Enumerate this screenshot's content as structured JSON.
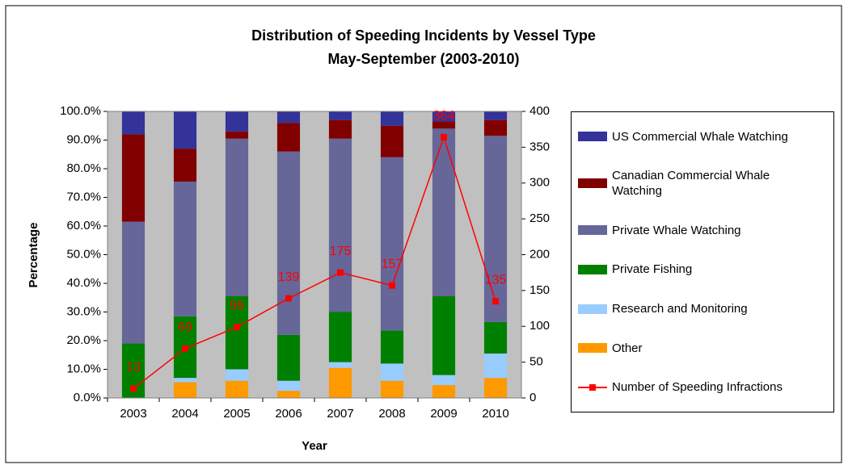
{
  "chart_data": {
    "type": "bar",
    "stacked": true,
    "title": "Distribution of Speeding Incidents by Vessel Type",
    "subtitle": "May-September (2003-2010)",
    "x_label": "Year",
    "y_label": "Percentage",
    "categories": [
      "2003",
      "2004",
      "2005",
      "2006",
      "2007",
      "2008",
      "2009",
      "2010"
    ],
    "ylim": [
      0,
      100
    ],
    "yticks": [
      {
        "value": 0,
        "label": "0.0%"
      },
      {
        "value": 10,
        "label": "10.0%"
      },
      {
        "value": 20,
        "label": "20.0%"
      },
      {
        "value": 30,
        "label": "30.0%"
      },
      {
        "value": 40,
        "label": "40.0%"
      },
      {
        "value": 50,
        "label": "50.0%"
      },
      {
        "value": 60,
        "label": "60.0%"
      },
      {
        "value": 70,
        "label": "70.0%"
      },
      {
        "value": 80,
        "label": "80.0%"
      },
      {
        "value": 90,
        "label": "90.0%"
      },
      {
        "value": 100,
        "label": "100.0%"
      }
    ],
    "y2lim": [
      0,
      400
    ],
    "y2ticks": [
      0,
      50,
      100,
      150,
      200,
      250,
      300,
      350,
      400
    ],
    "grid": false,
    "plot_background": "#c0c0c0",
    "legend": "right",
    "series": [
      {
        "name": "US Commercial Whale Watching",
        "color": "#333399",
        "values": [
          8,
          13,
          7,
          4,
          3,
          5,
          3.5,
          3
        ]
      },
      {
        "name": "Canadian Commercial Whale Watching",
        "color": "#800000",
        "values": [
          30.5,
          11.5,
          2.5,
          10,
          6.5,
          11,
          2.5,
          5.5
        ]
      },
      {
        "name": "Private Whale Watching",
        "color": "#666699",
        "values": [
          42.5,
          47,
          55,
          64,
          60.5,
          60.5,
          58.5,
          65
        ]
      },
      {
        "name": "Private Fishing",
        "color": "#008000",
        "values": [
          19,
          21.5,
          25.5,
          16,
          17.5,
          11.5,
          27.5,
          11
        ]
      },
      {
        "name": "Research and Monitoring",
        "color": "#99ccff",
        "values": [
          0,
          1.5,
          4,
          3.5,
          2,
          6,
          3.5,
          8.5
        ]
      },
      {
        "name": "Other",
        "color": "#ff9900",
        "values": [
          0,
          5.5,
          6,
          2.5,
          10.5,
          6,
          4.5,
          7
        ]
      },
      {
        "name": "Number of Speeding Infractions",
        "color": "#ff0000",
        "type": "line",
        "axis": "y2",
        "values": [
          13,
          69,
          99,
          139,
          175,
          157,
          364,
          135
        ]
      }
    ]
  }
}
